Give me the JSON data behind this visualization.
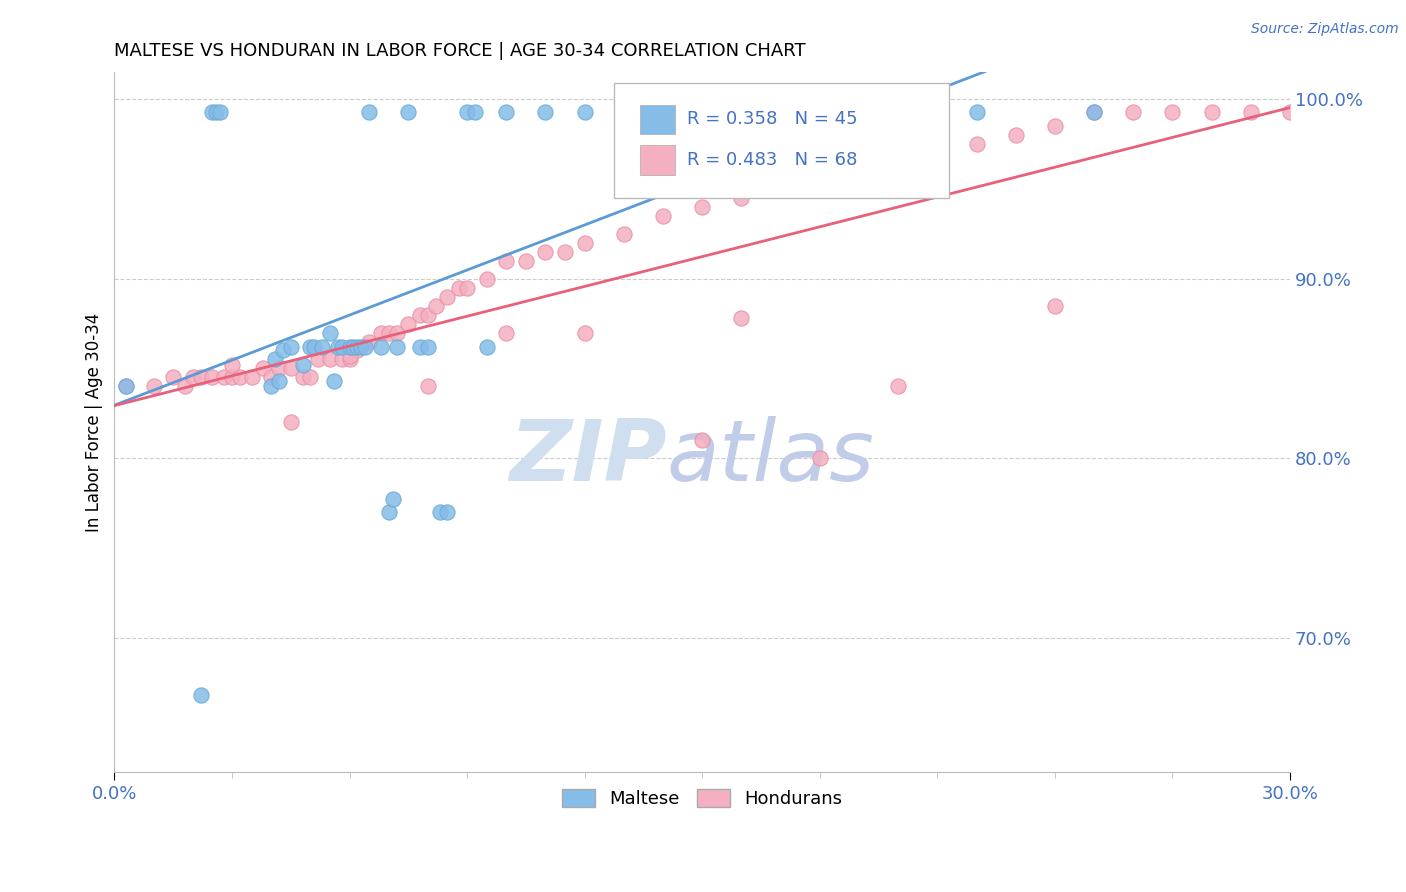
{
  "title": "MALTESE VS HONDURAN IN LABOR FORCE | AGE 30-34 CORRELATION CHART",
  "source_text": "Source: ZipAtlas.com",
  "ylabel": "In Labor Force | Age 30-34",
  "xlim": [
    0.0,
    0.3
  ],
  "ylim": [
    0.625,
    1.015
  ],
  "ytick_vals": [
    0.7,
    0.8,
    0.9,
    1.0
  ],
  "ytick_labels": [
    "70.0%",
    "80.0%",
    "90.0%",
    "100.0%"
  ],
  "xtick_vals": [
    0.0,
    0.3
  ],
  "xtick_labels": [
    "0.0%",
    "30.0%"
  ],
  "maltese_color": "#85bce8",
  "maltese_edge": "#6aaad8",
  "honduran_color": "#f4afc0",
  "honduran_edge": "#e890a8",
  "trendline_maltese_color": "#5b9bd5",
  "trendline_honduran_color": "#e8607a",
  "R_maltese": 0.358,
  "N_maltese": 45,
  "R_honduran": 0.483,
  "N_honduran": 68,
  "background_color": "#ffffff",
  "grid_color": "#cccccc",
  "axis_color": "#bbbbbb",
  "text_color": "#4472c4",
  "legend_text_color": "#222222",
  "watermark_color": "#d0dff0",
  "maltese_x": [
    0.003,
    0.022,
    0.025,
    0.026,
    0.027,
    0.04,
    0.041,
    0.042,
    0.043,
    0.045,
    0.048,
    0.05,
    0.051,
    0.053,
    0.055,
    0.056,
    0.057,
    0.058,
    0.06,
    0.061,
    0.062,
    0.063,
    0.064,
    0.065,
    0.068,
    0.07,
    0.071,
    0.072,
    0.075,
    0.078,
    0.08,
    0.083,
    0.085,
    0.09,
    0.092,
    0.095,
    0.1,
    0.11,
    0.12,
    0.13,
    0.15,
    0.18,
    0.22,
    0.25,
    0.14
  ],
  "maltese_y": [
    0.84,
    0.668,
    0.993,
    0.993,
    0.993,
    0.84,
    0.855,
    0.843,
    0.86,
    0.862,
    0.852,
    0.862,
    0.862,
    0.862,
    0.87,
    0.843,
    0.862,
    0.862,
    0.862,
    0.862,
    0.862,
    0.862,
    0.862,
    0.993,
    0.862,
    0.77,
    0.777,
    0.862,
    0.993,
    0.862,
    0.862,
    0.77,
    0.77,
    0.993,
    0.993,
    0.862,
    0.993,
    0.993,
    0.993,
    0.993,
    0.993,
    0.993,
    0.993,
    0.993,
    0.993
  ],
  "honduran_x": [
    0.003,
    0.01,
    0.015,
    0.018,
    0.02,
    0.022,
    0.025,
    0.028,
    0.03,
    0.032,
    0.035,
    0.038,
    0.04,
    0.042,
    0.045,
    0.048,
    0.05,
    0.052,
    0.055,
    0.058,
    0.06,
    0.062,
    0.065,
    0.068,
    0.07,
    0.072,
    0.075,
    0.078,
    0.08,
    0.082,
    0.085,
    0.088,
    0.09,
    0.095,
    0.1,
    0.105,
    0.11,
    0.115,
    0.12,
    0.13,
    0.14,
    0.15,
    0.16,
    0.17,
    0.18,
    0.19,
    0.2,
    0.21,
    0.22,
    0.23,
    0.24,
    0.25,
    0.26,
    0.27,
    0.28,
    0.29,
    0.3,
    0.18,
    0.15,
    0.1,
    0.06,
    0.03,
    0.045,
    0.08,
    0.12,
    0.16,
    0.2,
    0.24
  ],
  "honduran_y": [
    0.84,
    0.84,
    0.845,
    0.84,
    0.845,
    0.845,
    0.845,
    0.845,
    0.845,
    0.845,
    0.845,
    0.85,
    0.845,
    0.85,
    0.85,
    0.845,
    0.845,
    0.855,
    0.855,
    0.855,
    0.855,
    0.86,
    0.865,
    0.87,
    0.87,
    0.87,
    0.875,
    0.88,
    0.88,
    0.885,
    0.89,
    0.895,
    0.895,
    0.9,
    0.91,
    0.91,
    0.915,
    0.915,
    0.92,
    0.925,
    0.935,
    0.94,
    0.945,
    0.95,
    0.955,
    0.96,
    0.965,
    0.97,
    0.975,
    0.98,
    0.985,
    0.993,
    0.993,
    0.993,
    0.993,
    0.993,
    0.993,
    0.8,
    0.81,
    0.87,
    0.857,
    0.852,
    0.82,
    0.84,
    0.87,
    0.878,
    0.84,
    0.885
  ]
}
